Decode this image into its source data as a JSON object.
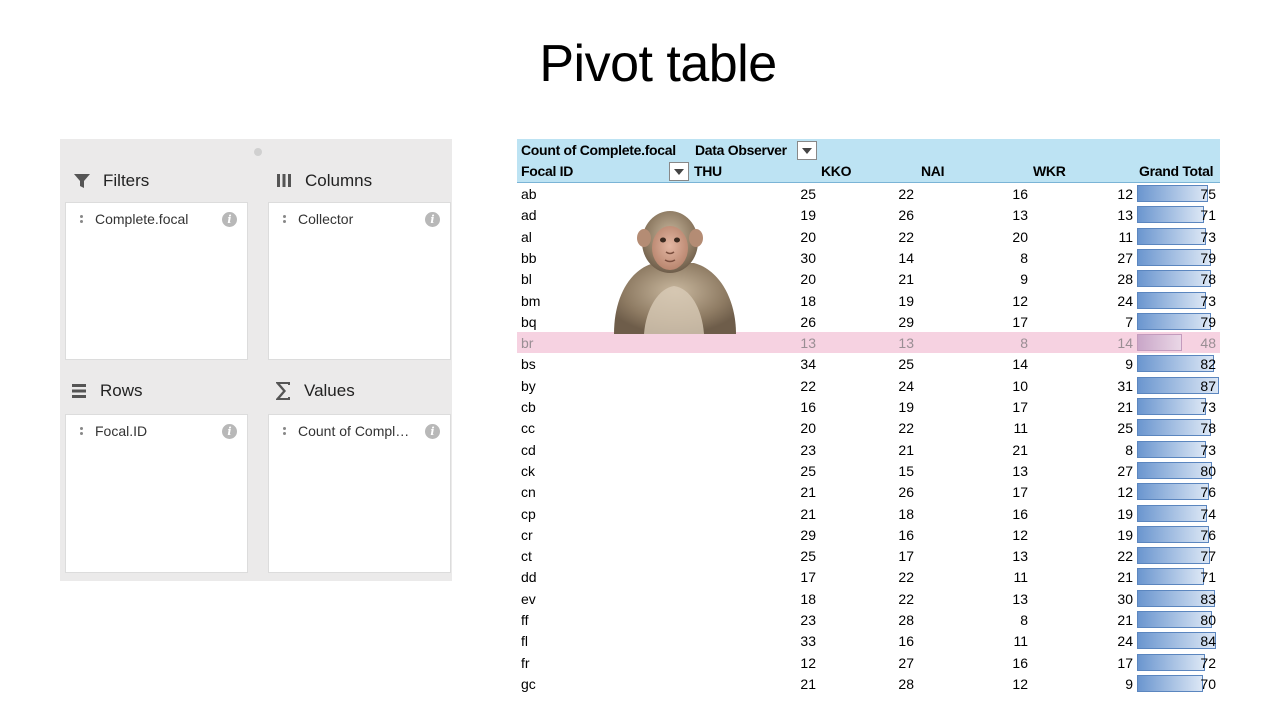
{
  "slide": {
    "title": "Pivot table"
  },
  "fields_panel": {
    "filters": {
      "header": "Filters",
      "icon": "funnel-icon",
      "field": "Complete.focal"
    },
    "columns": {
      "header": "Columns",
      "icon": "columns-icon",
      "field": "Collector"
    },
    "rows": {
      "header": "Rows",
      "icon": "rows-icon",
      "field": "Focal.ID"
    },
    "values": {
      "header": "Values",
      "icon": "sigma-icon",
      "field": "Count of Compl…"
    },
    "info_glyph": "i"
  },
  "pivot": {
    "value_header": "Count of Complete.focal",
    "column_header": "Data Observer",
    "row_header": "Focal ID",
    "columns": [
      "THU",
      "KKO",
      "NAI",
      "WKR",
      "Grand Total"
    ],
    "max_total": 87,
    "highlight_row": "br",
    "rows": [
      {
        "id": "ab",
        "values": [
          "25",
          "22",
          "16",
          "12"
        ],
        "total": "75"
      },
      {
        "id": "ad",
        "values": [
          "19",
          "26",
          "13",
          "13"
        ],
        "total": "71"
      },
      {
        "id": "al",
        "values": [
          "20",
          "22",
          "20",
          "11"
        ],
        "total": "73"
      },
      {
        "id": "bb",
        "values": [
          "30",
          "14",
          "8",
          "27"
        ],
        "total": "79"
      },
      {
        "id": "bl",
        "values": [
          "20",
          "21",
          "9",
          "28"
        ],
        "total": "78"
      },
      {
        "id": "bm",
        "values": [
          "18",
          "19",
          "12",
          "24"
        ],
        "total": "73"
      },
      {
        "id": "bq",
        "values": [
          "26",
          "29",
          "17",
          "7"
        ],
        "total": "79"
      },
      {
        "id": "br",
        "values": [
          "13",
          "13",
          "8",
          "14"
        ],
        "total": "48"
      },
      {
        "id": "bs",
        "values": [
          "34",
          "25",
          "14",
          "9"
        ],
        "total": "82"
      },
      {
        "id": "by",
        "values": [
          "22",
          "24",
          "10",
          "31"
        ],
        "total": "87"
      },
      {
        "id": "cb",
        "values": [
          "16",
          "19",
          "17",
          "21"
        ],
        "total": "73"
      },
      {
        "id": "cc",
        "values": [
          "20",
          "22",
          "11",
          "25"
        ],
        "total": "78"
      },
      {
        "id": "cd",
        "values": [
          "23",
          "21",
          "21",
          "8"
        ],
        "total": "73"
      },
      {
        "id": "ck",
        "values": [
          "25",
          "15",
          "13",
          "27"
        ],
        "total": "80"
      },
      {
        "id": "cn",
        "values": [
          "21",
          "26",
          "17",
          "12"
        ],
        "total": "76"
      },
      {
        "id": "cp",
        "values": [
          "21",
          "18",
          "16",
          "19"
        ],
        "total": "74"
      },
      {
        "id": "cr",
        "values": [
          "29",
          "16",
          "12",
          "19"
        ],
        "total": "76"
      },
      {
        "id": "ct",
        "values": [
          "25",
          "17",
          "13",
          "22"
        ],
        "total": "77"
      },
      {
        "id": "dd",
        "values": [
          "17",
          "22",
          "11",
          "21"
        ],
        "total": "71"
      },
      {
        "id": "ev",
        "values": [
          "18",
          "22",
          "13",
          "30"
        ],
        "total": "83"
      },
      {
        "id": "ff",
        "values": [
          "23",
          "28",
          "8",
          "21"
        ],
        "total": "80"
      },
      {
        "id": "fl",
        "values": [
          "33",
          "16",
          "11",
          "24"
        ],
        "total": "84"
      },
      {
        "id": "fr",
        "values": [
          "12",
          "27",
          "16",
          "17"
        ],
        "total": "72"
      },
      {
        "id": "gc",
        "values": [
          "21",
          "28",
          "12",
          "9"
        ],
        "total": "70"
      }
    ]
  },
  "colors": {
    "header_bg": "#bde3f3",
    "highlight_bg": "#f6d2e1",
    "databar": "#6b96cf",
    "panel_bg": "#ebeaea"
  }
}
